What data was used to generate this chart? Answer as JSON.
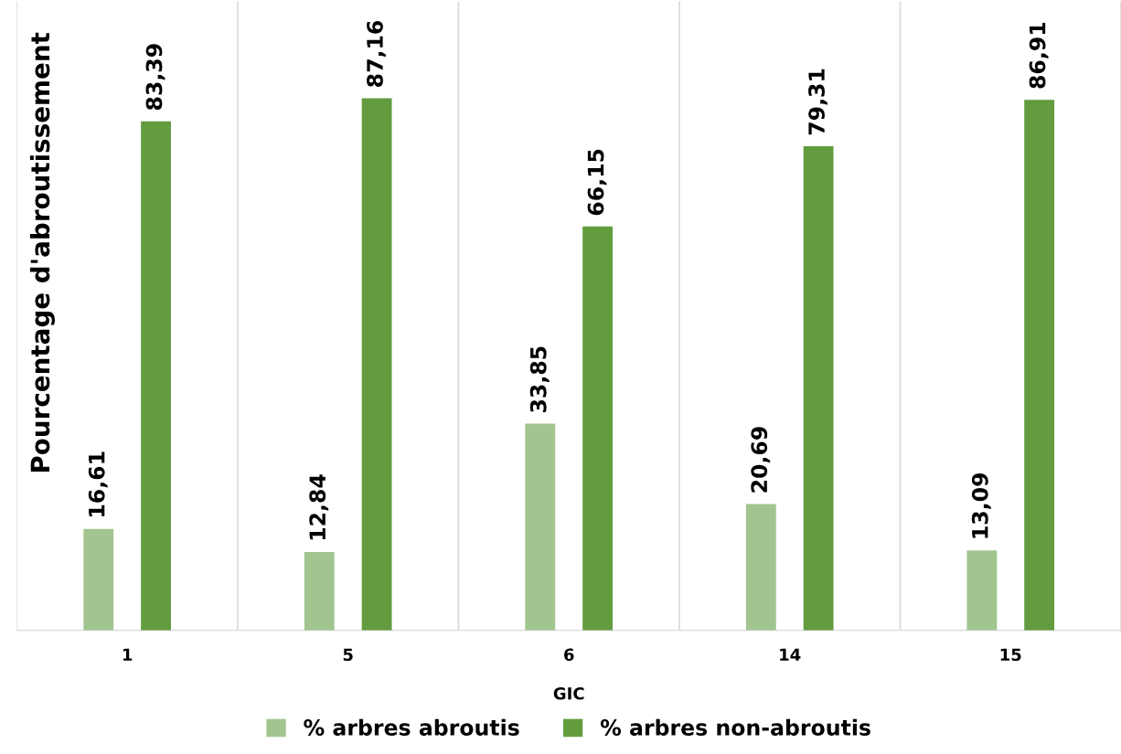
{
  "chart_data": {
    "type": "bar",
    "xlabel": "GIC",
    "ylabel": "Pourcentage d'abroutissement",
    "categories": [
      "1",
      "5",
      "6",
      "14",
      "15"
    ],
    "series": [
      {
        "name": "% arbres abroutis",
        "color": "#a2c58f",
        "values": [
          16.61,
          12.84,
          33.85,
          20.69,
          13.09
        ],
        "value_labels": [
          "16,61",
          "12,84",
          "33,85",
          "20,69",
          "13,09"
        ]
      },
      {
        "name": "% arbres non-abroutis",
        "color": "#629c3f",
        "values": [
          83.39,
          87.16,
          66.15,
          79.31,
          86.91
        ],
        "value_labels": [
          "83,39",
          "87,16",
          "66,15",
          "79,31",
          "86,91"
        ]
      }
    ],
    "ylim": [
      0,
      103
    ],
    "grid": "x",
    "legend": "bottom"
  }
}
